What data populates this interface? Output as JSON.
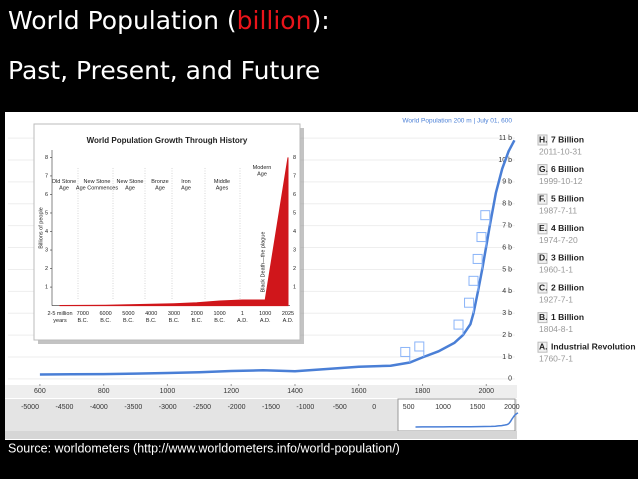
{
  "slide": {
    "title_prefix": "World Population (",
    "title_highlight": "billion",
    "title_suffix": "):",
    "title_line2": "Past, Present, and Future",
    "source": "Source: worldometers (http://www.worldometers.info/world-population/)"
  },
  "chart_data": [
    {
      "type": "line",
      "subtitle": "World Population 200 m | July 01, 600",
      "x": [
        600,
        700,
        800,
        900,
        1000,
        1100,
        1200,
        1300,
        1400,
        1500,
        1600,
        1700,
        1760,
        1800,
        1850,
        1900,
        1927,
        1950,
        1960,
        1974,
        1987,
        1999,
        2011,
        2030,
        2050,
        2070,
        2088
      ],
      "series": [
        {
          "name": "World Population",
          "color": "#4a7fd6",
          "values": [
            0.2,
            0.21,
            0.22,
            0.24,
            0.27,
            0.3,
            0.36,
            0.39,
            0.35,
            0.45,
            0.55,
            0.6,
            0.75,
            0.98,
            1.26,
            1.65,
            2,
            2.5,
            3,
            4,
            5,
            6,
            7,
            8.5,
            9.6,
            10.4,
            10.9
          ]
        }
      ],
      "xlim": [
        500,
        2090
      ],
      "xticks": [
        600,
        800,
        1000,
        1200,
        1400,
        1600,
        1800,
        2000
      ],
      "ylim": [
        -0.6,
        11.6
      ],
      "yticks": [
        0,
        {
          "value": 1,
          "label": "1 b"
        },
        {
          "value": 2,
          "label": "2 b"
        },
        {
          "value": 3,
          "label": "3 b"
        },
        {
          "value": 4,
          "label": "4 b"
        },
        {
          "value": 5,
          "label": "5 b"
        },
        {
          "value": 6,
          "label": "6 b"
        },
        {
          "value": 7,
          "label": "7 b"
        },
        {
          "value": 8,
          "label": "8 b"
        },
        {
          "value": 9,
          "label": "9 b"
        },
        {
          "value": 10,
          "label": "10 b"
        },
        {
          "value": 11,
          "label": "11 b"
        }
      ],
      "grid": true,
      "events": [
        {
          "letter": "H.",
          "label": "7 Billion",
          "date": "2011-10-31",
          "x": 2011,
          "y": 7
        },
        {
          "letter": "G.",
          "label": "6 Billion",
          "date": "1999-10-12",
          "x": 1999,
          "y": 6
        },
        {
          "letter": "F.",
          "label": "5 Billion",
          "date": "1987-7-11",
          "x": 1987,
          "y": 5
        },
        {
          "letter": "E.",
          "label": "4 Billion",
          "date": "1974-7-20",
          "x": 1974,
          "y": 4
        },
        {
          "letter": "D.",
          "label": "3 Billion",
          "date": "1960-1-1",
          "x": 1960,
          "y": 3
        },
        {
          "letter": "C.",
          "label": "2 Billion",
          "date": "1927-7-1",
          "x": 1927,
          "y": 2
        },
        {
          "letter": "B.",
          "label": "1 Billion",
          "date": "1804-8-1",
          "x": 1804,
          "y": 1
        },
        {
          "letter": "A.",
          "label": "Industrial Revolution",
          "date": "1760-7-1",
          "x": 1760,
          "y": 0.75
        }
      ],
      "overview_xlim": [
        -5320,
        2045
      ],
      "overview_xticks": [
        -5000,
        -4500,
        -4000,
        -3500,
        -3000,
        -2500,
        -2000,
        -1500,
        -1000,
        -500,
        0,
        500,
        1000,
        1500,
        2000
      ]
    },
    {
      "type": "area",
      "title": "World Population Growth Through History",
      "ylabel": "Billions of people",
      "categories": [
        "2-5 million years",
        "7000 B.C.",
        "6000 B.C.",
        "5000 B.C.",
        "4000 B.C.",
        "3000 B.C.",
        "2000 B.C.",
        "1000 B.C.",
        "1 A.D.",
        "1000 A.D.",
        "2025 A.D."
      ],
      "values": [
        0.005,
        0.01,
        0.02,
        0.05,
        0.07,
        0.1,
        0.15,
        0.25,
        0.3,
        0.31,
        8
      ],
      "color": "#d0161b",
      "ylim": [
        0,
        8.4
      ],
      "yticks": [
        1,
        2,
        3,
        4,
        5,
        6,
        7,
        8
      ],
      "eras": [
        "Old Stone Age",
        "New Stone Age Commences",
        "New Stone Age",
        "Bronze Age",
        "Iron Age",
        "Middle Ages",
        "Modern Age"
      ],
      "annotation": "Black Death—the plague"
    }
  ]
}
